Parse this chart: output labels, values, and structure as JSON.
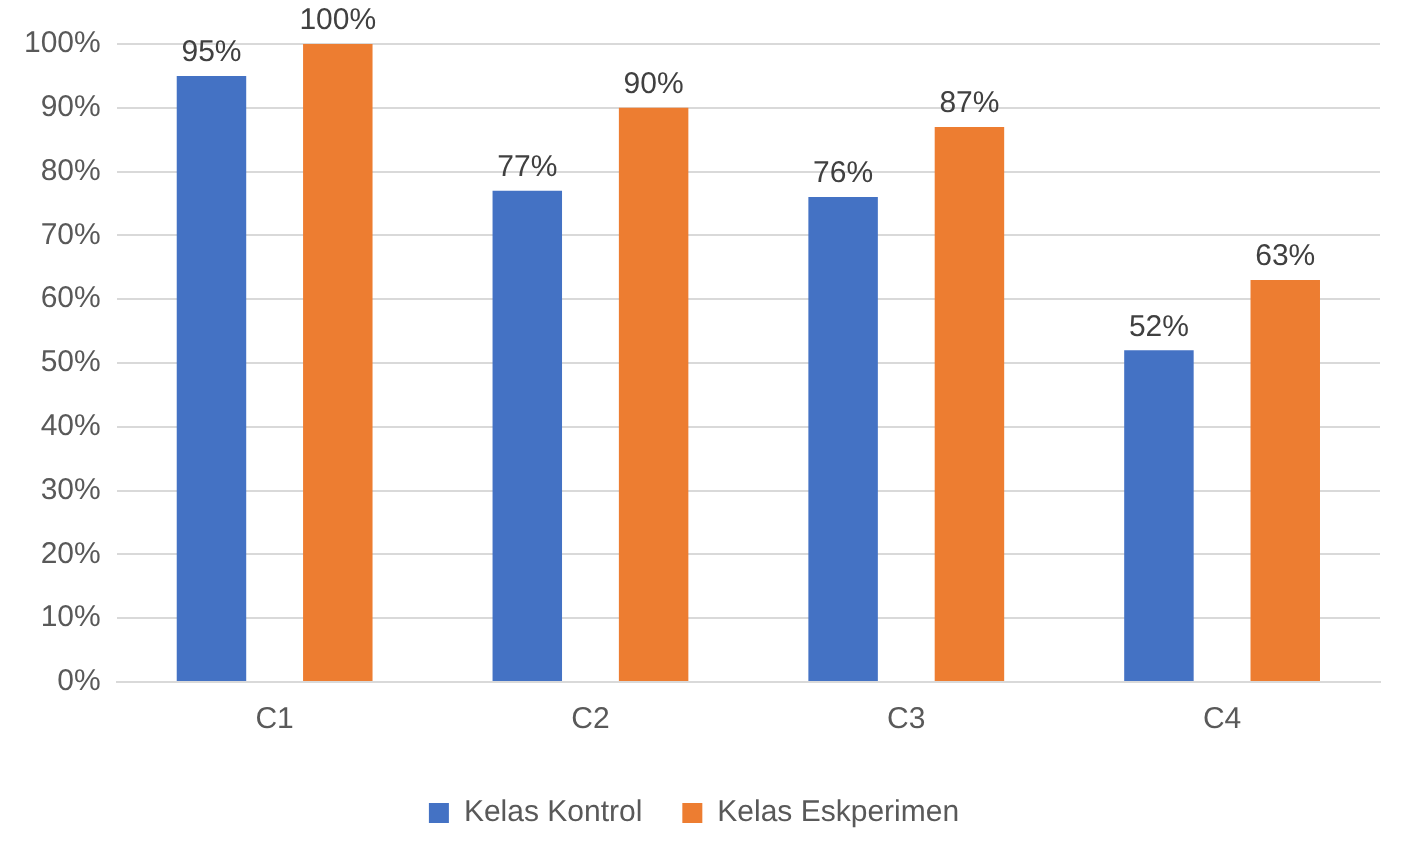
{
  "chart_data": {
    "type": "bar",
    "categories": [
      "C1",
      "C2",
      "C3",
      "C4"
    ],
    "series": [
      {
        "name": "Kelas Kontrol",
        "color": "#4472c4",
        "values": [
          95,
          77,
          76,
          52
        ],
        "value_labels": [
          "95%",
          "77%",
          "76%",
          "52%"
        ]
      },
      {
        "name": "Kelas Eskperimen",
        "color": "#ed7d31",
        "values": [
          100,
          90,
          87,
          63
        ],
        "value_labels": [
          "100%",
          "90%",
          "87%",
          "63%"
        ]
      }
    ],
    "ylim": [
      0,
      100
    ],
    "yticks": [
      {
        "value": 0,
        "label": "0%"
      },
      {
        "value": 10,
        "label": "10%"
      },
      {
        "value": 20,
        "label": "20%"
      },
      {
        "value": 30,
        "label": "30%"
      },
      {
        "value": 40,
        "label": "40%"
      },
      {
        "value": 50,
        "label": "50%"
      },
      {
        "value": 60,
        "label": "60%"
      },
      {
        "value": 70,
        "label": "70%"
      },
      {
        "value": 80,
        "label": "80%"
      },
      {
        "value": 90,
        "label": "90%"
      },
      {
        "value": 100,
        "label": "100%"
      }
    ],
    "grid": "y",
    "legend": "bottom"
  }
}
